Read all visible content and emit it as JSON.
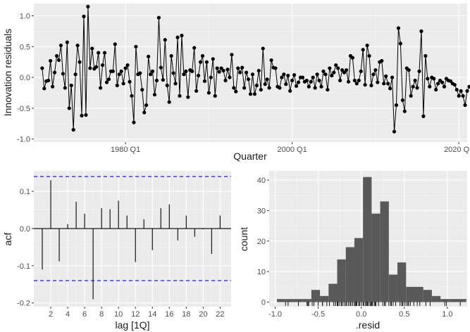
{
  "chart_data": [
    {
      "type": "line",
      "panel": "top",
      "title": "",
      "xlabel": "Quarter",
      "ylabel": "Innovation residuals",
      "xlim": [
        1969.0,
        2021.0
      ],
      "ylim": [
        -1.05,
        1.2
      ],
      "x_ticks": [
        {
          "value": 1980,
          "label": "1980 Q1"
        },
        {
          "value": 2000,
          "label": "2000 Q1"
        },
        {
          "value": 2020,
          "label": "2020 Q1"
        }
      ],
      "y_ticks": [
        {
          "value": -1.0,
          "label": "-1.0"
        },
        {
          "value": -0.5,
          "label": "-0.5"
        },
        {
          "value": 0.0,
          "label": "0.0"
        },
        {
          "value": 0.5,
          "label": "0.5"
        },
        {
          "value": 1.0,
          "label": "1.0"
        }
      ],
      "start": 1970.0,
      "step": 0.25,
      "values": [
        0.15,
        -0.18,
        -0.06,
        -0.05,
        0.27,
        -0.15,
        0.08,
        0.35,
        0.28,
        0.52,
        0.06,
        -0.17,
        0.57,
        -0.5,
        -0.13,
        -0.85,
        0.05,
        0.52,
        0.25,
        -0.62,
        0.99,
        -0.61,
        1.15,
        0.15,
        0.47,
        0.14,
        0.17,
        0.4,
        -0.17,
        0.2,
        0.4,
        -0.08,
        -0.03,
        0.1,
        0.1,
        0.54,
        -0.13,
        0.05,
        0.1,
        -0.1,
        0.15,
        0.2,
        -0.07,
        -0.3,
        -0.73,
        0.5,
        0.05,
        0.07,
        -0.2,
        -0.57,
        -0.45,
        0.34,
        0.05,
        0.1,
        -0.28,
        -0.05,
        0.97,
        0.16,
        -0.04,
        0.61,
        -0.13,
        -0.4,
        0.35,
        0.07,
        -0.1,
        0.65,
        -0.3,
        0.68,
        0.05,
        0.1,
        -0.32,
        0.12,
        0.1,
        0.48,
        -0.22,
        0.03,
        0.25,
        0.35,
        -0.06,
        0.25,
        -0.25,
        0.0,
        0.3,
        -0.3,
        0.15,
        0.09,
        0.15,
        0.11,
        -0.05,
        0.13,
        0.0,
        0.37,
        -0.17,
        -0.23,
        0.15,
        0.08,
        0.16,
        -0.17,
        0.08,
        -0.03,
        -0.27,
        0.05,
        -0.27,
        -0.13,
        0.11,
        -0.2,
        0.47,
        -0.11,
        -0.03,
        -0.17,
        0.28,
        0.16,
        0.15,
        -0.15,
        -0.17,
        0.0,
        0.05,
        -0.11,
        0.03,
        -0.22,
        -0.05,
        0.04,
        -0.14,
        -0.08,
        0.0,
        0.0,
        -0.07,
        -0.05,
        -0.15,
        -0.07,
        0.0,
        -0.17,
        0.05,
        -0.05,
        -0.15,
        0.1,
        0.05,
        -0.2,
        0.15,
        0.03,
        0.08,
        0.2,
        0.15,
        -0.05,
        0.12,
        0.08,
        0.12,
        -0.07,
        0.35,
        0.32,
        -0.05,
        -0.1,
        -0.05,
        0.1,
        0.45,
        -0.12,
        0.52,
        0.35,
        -0.13,
        0.05,
        0.12,
        -0.08,
        0.25,
        0.27,
        -0.1,
        0.02,
        -0.1,
        -0.18,
        0.0,
        -0.88,
        -0.45,
        0.8,
        0.55,
        -0.37,
        -0.55,
        0.15,
        0.12,
        -0.3,
        -0.15,
        -0.05,
        -0.17,
        0.1,
        0.75,
        -0.63,
        0.35,
        -0.02,
        -0.15,
        0.0,
        -0.02,
        -0.2,
        -0.1,
        -0.05,
        -0.08,
        -0.15,
        -0.02,
        -0.05,
        -0.06,
        -0.1,
        -0.12,
        -0.2,
        -0.3,
        -0.22,
        -0.3,
        -0.45,
        -0.22,
        -0.15,
        -0.17,
        -0.1,
        -0.17,
        -0.05,
        -0.05,
        0.0,
        0.05,
        0.0,
        -0.05,
        -0.08,
        -0.1,
        0.05,
        -0.03,
        0.02,
        -0.06,
        -0.05,
        0.05,
        -0.1,
        -0.07,
        0.0,
        -0.1,
        -0.17,
        -0.05,
        -0.08,
        0.1,
        -0.15,
        0.05,
        -0.1,
        -0.13,
        -0.23,
        0.2
      ]
    },
    {
      "type": "bar",
      "panel": "bottom-left",
      "title": "",
      "xlabel": "lag [1Q]",
      "ylabel": "acf",
      "xlim": [
        0,
        23.3
      ],
      "ylim": [
        -0.21,
        0.155
      ],
      "x_ticks": [
        {
          "value": 2,
          "label": "2"
        },
        {
          "value": 4,
          "label": "4"
        },
        {
          "value": 6,
          "label": "6"
        },
        {
          "value": 8,
          "label": "8"
        },
        {
          "value": 10,
          "label": "10"
        },
        {
          "value": 12,
          "label": "12"
        },
        {
          "value": 14,
          "label": "14"
        },
        {
          "value": 16,
          "label": "16"
        },
        {
          "value": 18,
          "label": "18"
        },
        {
          "value": 20,
          "label": "20"
        },
        {
          "value": 22,
          "label": "22"
        }
      ],
      "y_ticks": [
        {
          "value": -0.2,
          "label": "-0.2"
        },
        {
          "value": -0.1,
          "label": "-0.1"
        },
        {
          "value": 0.0,
          "label": "0.0"
        },
        {
          "value": 0.1,
          "label": "0.1"
        }
      ],
      "lags": [
        1,
        2,
        3,
        4,
        5,
        6,
        7,
        8,
        9,
        10,
        11,
        12,
        13,
        14,
        15,
        16,
        17,
        18,
        19,
        20,
        21,
        22
      ],
      "values": [
        -0.11,
        0.13,
        -0.088,
        0.012,
        0.072,
        0.04,
        -0.19,
        0.055,
        0.052,
        0.075,
        0.035,
        -0.09,
        0.025,
        -0.058,
        0.055,
        0.065,
        -0.032,
        0.035,
        -0.022,
        -0.002,
        -0.068,
        0.035
      ],
      "confidence_bound": 0.14
    },
    {
      "type": "bar",
      "subtype": "histogram",
      "panel": "bottom-right",
      "title": "",
      "xlabel": ".resid",
      "ylabel": "count",
      "xlim": [
        -1.07,
        1.23
      ],
      "ylim": [
        -1.5,
        43
      ],
      "x_ticks": [
        {
          "value": -1.0,
          "label": "-1.0"
        },
        {
          "value": -0.5,
          "label": "-0.5"
        },
        {
          "value": 0.0,
          "label": "0.0"
        },
        {
          "value": 0.5,
          "label": "0.5"
        },
        {
          "value": 1.0,
          "label": "1.0"
        }
      ],
      "y_ticks": [
        {
          "value": 0,
          "label": "0"
        },
        {
          "value": 10,
          "label": "10"
        },
        {
          "value": 20,
          "label": "20"
        },
        {
          "value": 30,
          "label": "30"
        },
        {
          "value": 40,
          "label": "40"
        }
      ],
      "bin_start": -0.98,
      "bin_width": 0.1,
      "counts": [
        1,
        1,
        1,
        1,
        4,
        2,
        6,
        14,
        18,
        21,
        41,
        29,
        33,
        9,
        13,
        5,
        5,
        4,
        2,
        1,
        1,
        1
      ],
      "rug": [
        -0.88,
        -0.85,
        -0.73,
        -0.63,
        -0.62,
        -0.61,
        -0.57,
        -0.55,
        -0.5,
        -0.45,
        -0.45,
        -0.4,
        -0.37,
        -0.32,
        -0.3,
        -0.3,
        -0.3,
        -0.28,
        -0.27,
        -0.27,
        -0.25,
        -0.23,
        -0.22,
        -0.2,
        -0.18,
        -0.17,
        -0.15,
        -0.13,
        -0.12,
        -0.1,
        -0.08,
        -0.07,
        -0.06,
        -0.05,
        -0.03,
        -0.02,
        0.0,
        0.02,
        0.03,
        0.05,
        0.06,
        0.07,
        0.08,
        0.1,
        0.11,
        0.12,
        0.13,
        0.15,
        0.16,
        0.17,
        0.2,
        0.25,
        0.27,
        0.28,
        0.32,
        0.34,
        0.35,
        0.37,
        0.4,
        0.45,
        0.47,
        0.48,
        0.5,
        0.52,
        0.54,
        0.55,
        0.57,
        0.61,
        0.65,
        0.68,
        0.75,
        0.8,
        0.97,
        0.99,
        1.15
      ]
    }
  ]
}
